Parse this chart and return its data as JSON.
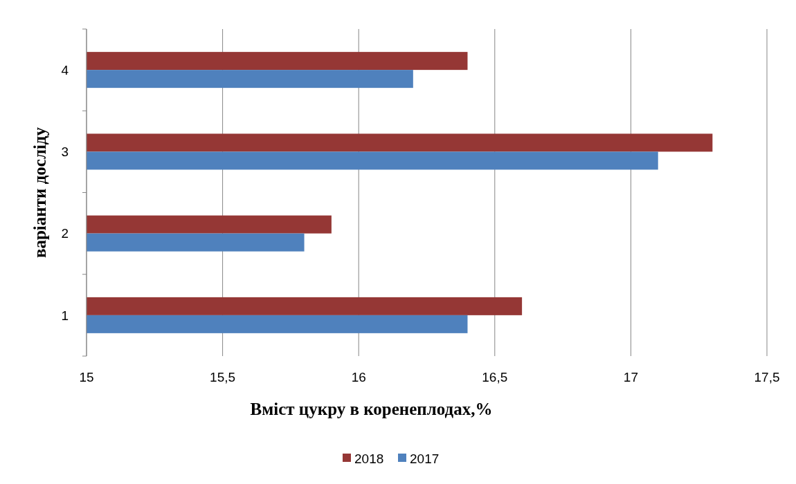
{
  "chart_data": {
    "type": "bar",
    "orientation": "horizontal",
    "xlabel": "Вміст цукру в коренеплодах,%",
    "ylabel": "варіанти досліду",
    "categories": [
      "4",
      "3",
      "2",
      "1"
    ],
    "series": [
      {
        "name": "2018",
        "color": "#953735",
        "values": [
          16.4,
          17.3,
          15.9,
          16.6
        ]
      },
      {
        "name": "2017",
        "color": "#4f81bd",
        "values": [
          16.2,
          17.1,
          15.8,
          16.4
        ]
      }
    ],
    "xlim": [
      15,
      17.5
    ],
    "xticks": [
      15,
      {
        "value": 15.5,
        "label": "15,5"
      },
      16,
      {
        "value": 16.5,
        "label": "16,5"
      },
      17,
      {
        "value": 17.5,
        "label": "17,5"
      }
    ],
    "grid": "x",
    "legend": "bottom"
  }
}
